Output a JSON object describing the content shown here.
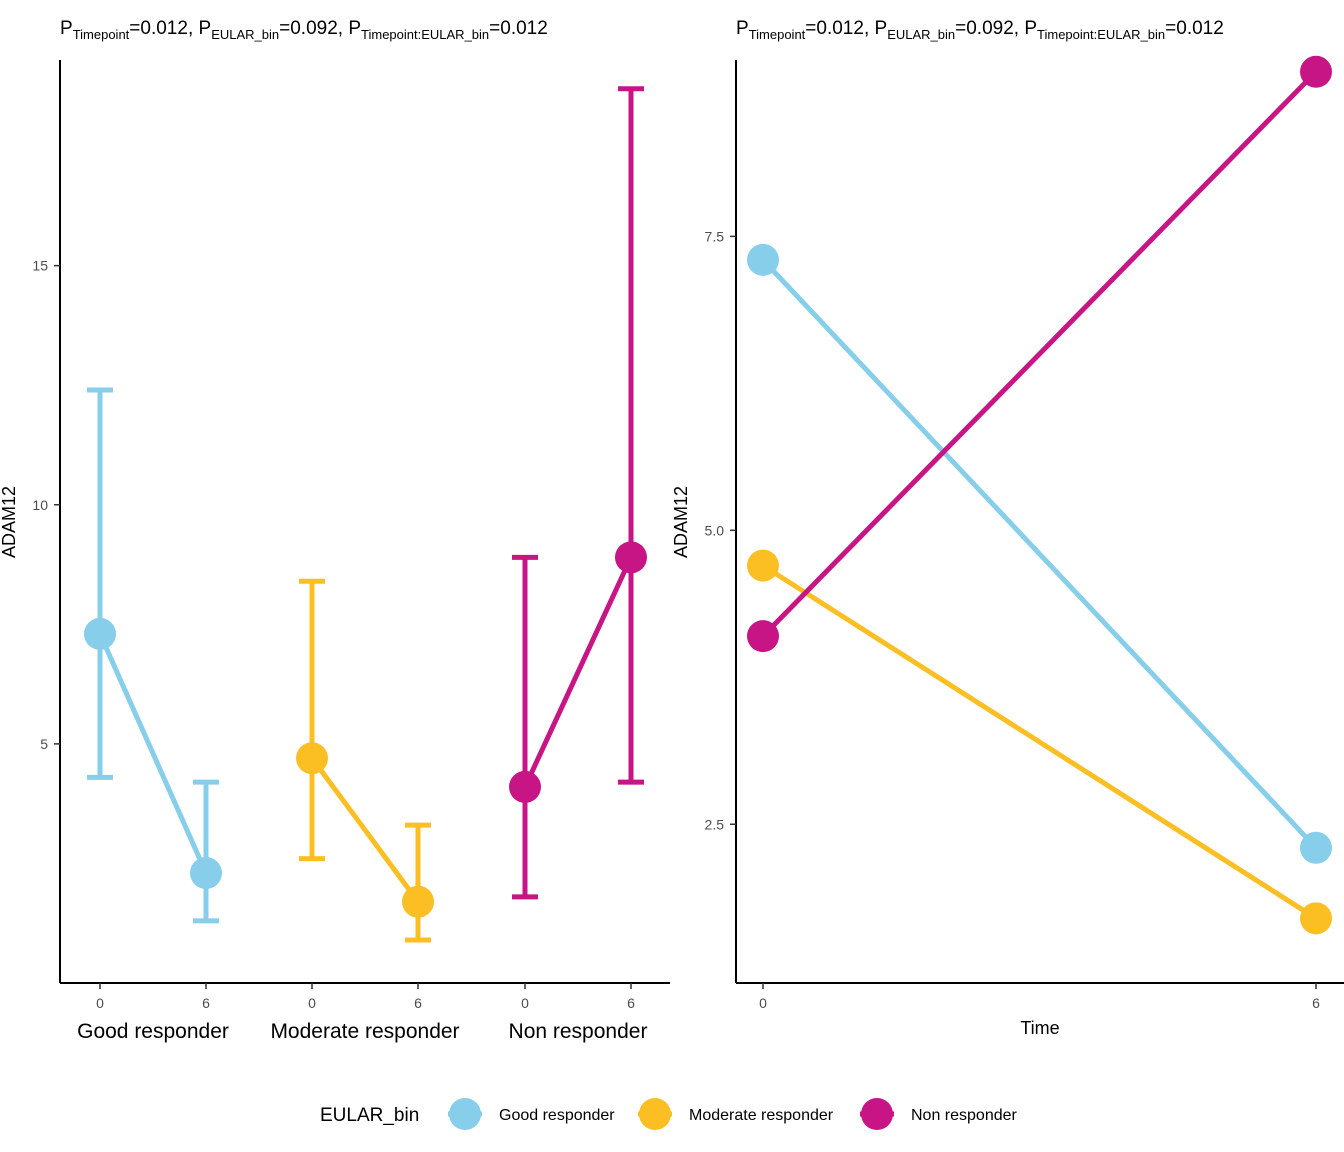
{
  "colors": {
    "good": "#87CEEB",
    "moderate": "#FBBF24",
    "non": "#C71585",
    "axis": "#000000",
    "tick_text": "#4d4d4d"
  },
  "legend": {
    "title": "EULAR_bin",
    "items": [
      {
        "label": "Good responder",
        "color": "#87CEEB"
      },
      {
        "label": "Moderate responder",
        "color": "#FBBF24"
      },
      {
        "label": "Non responder",
        "color": "#C71585"
      }
    ]
  },
  "titles": {
    "parts": [
      {
        "p": "P",
        "sub": "Timepoint",
        "val": "=0.012, "
      },
      {
        "p": "P",
        "sub": "EULAR_bin",
        "val": "=0.092, "
      },
      {
        "p": "P",
        "sub": "Timepoint:EULAR_bin",
        "val": "=0.012"
      }
    ]
  },
  "chart_data": [
    {
      "type": "line",
      "ylabel": "ADAM12",
      "xlabel": "",
      "ylim": [
        0,
        19.3
      ],
      "yticks": [
        5,
        10,
        15
      ],
      "groups": [
        "Good responder",
        "Moderate responder",
        "Non responder"
      ],
      "x_tick_labels": [
        "0",
        "6"
      ],
      "series": [
        {
          "name": "Good responder",
          "color": "#87CEEB",
          "points": [
            {
              "time": "0",
              "mean": 7.3,
              "lower": 4.3,
              "upper": 12.4
            },
            {
              "time": "6",
              "mean": 2.3,
              "lower": 1.3,
              "upper": 4.2
            }
          ]
        },
        {
          "name": "Moderate responder",
          "color": "#FBBF24",
          "points": [
            {
              "time": "0",
              "mean": 4.7,
              "lower": 2.6,
              "upper": 8.4
            },
            {
              "time": "6",
              "mean": 1.7,
              "lower": 0.9,
              "upper": 3.3
            }
          ]
        },
        {
          "name": "Non responder",
          "color": "#C71585",
          "points": [
            {
              "time": "0",
              "mean": 4.1,
              "lower": 1.8,
              "upper": 8.9
            },
            {
              "time": "6",
              "mean": 8.9,
              "lower": 4.2,
              "upper": 18.7
            }
          ]
        }
      ]
    },
    {
      "type": "line",
      "ylabel": "ADAM12",
      "xlabel": "Time",
      "xlim": [
        0,
        6
      ],
      "ylim": [
        1.15,
        9.0
      ],
      "yticks": [
        2.5,
        5.0,
        7.5
      ],
      "ytick_labels": [
        "2.5",
        "5.0",
        "7.5"
      ],
      "xticks": [
        0,
        6
      ],
      "series": [
        {
          "name": "Good responder",
          "color": "#87CEEB",
          "x": [
            0,
            6
          ],
          "y": [
            7.3,
            2.3
          ]
        },
        {
          "name": "Moderate responder",
          "color": "#FBBF24",
          "x": [
            0,
            6
          ],
          "y": [
            4.7,
            1.7
          ]
        },
        {
          "name": "Non responder",
          "color": "#C71585",
          "x": [
            0,
            6
          ],
          "y": [
            4.1,
            8.9
          ]
        }
      ]
    }
  ]
}
